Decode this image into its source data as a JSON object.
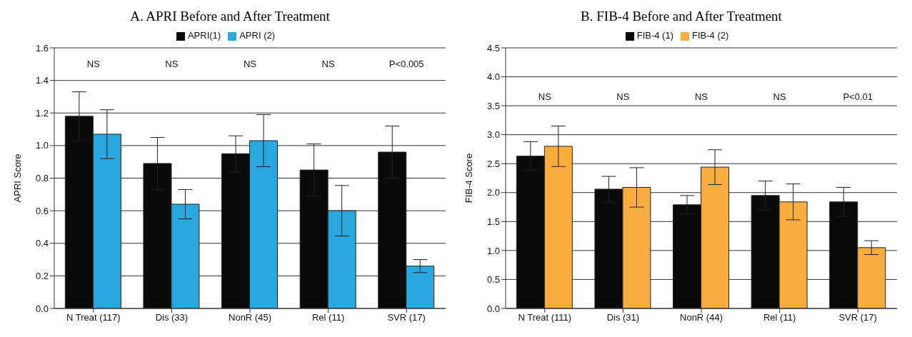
{
  "chart_data": [
    {
      "type": "bar",
      "title": "A.  APRI Before and After Treatment",
      "ylabel": "APRI Score",
      "categories": [
        "N  Treat (117)",
        "Dis (33)",
        "NonR (45)",
        "Rel (11)",
        "SVR (17)"
      ],
      "series": [
        {
          "name": "APRI(1)",
          "color": "#0a0a0a",
          "values": [
            1.18,
            0.89,
            0.95,
            0.85,
            0.96
          ],
          "errors": [
            0.15,
            0.16,
            0.11,
            0.16,
            0.16
          ]
        },
        {
          "name": "APRI (2)",
          "color": "#29a8e0",
          "values": [
            1.07,
            0.64,
            1.03,
            0.6,
            0.26
          ],
          "errors": [
            0.15,
            0.09,
            0.16,
            0.155,
            0.04
          ]
        }
      ],
      "ylim": [
        0,
        1.6
      ],
      "yticks": [
        {
          "value": 0,
          "label": "0.0"
        },
        {
          "value": 0.2,
          "label": "0.2"
        },
        {
          "value": 0.4,
          "label": "0.4"
        },
        {
          "value": 0.6,
          "label": "0.6"
        },
        {
          "value": 0.8,
          "label": "0.8"
        },
        {
          "value": 1,
          "label": "1.0"
        },
        {
          "value": 1.2,
          "label": "1.2"
        },
        {
          "value": 1.4,
          "label": "1.4"
        },
        {
          "value": 1.6,
          "label": "1.6"
        }
      ],
      "grid": "y",
      "legend": "top",
      "annotations": [
        "NS",
        "NS",
        "NS",
        "NS",
        "P<0.005"
      ]
    },
    {
      "type": "bar",
      "title": "B.  FIB-4 Before and After Treatment",
      "ylabel": "FIB-4 Score",
      "categories": [
        "N  Treat (111)",
        "Dis (31)",
        "NonR (44)",
        "Rel (11)",
        "SVR (17)"
      ],
      "series": [
        {
          "name": "FIB-4 (1)",
          "color": "#0a0a0a",
          "values": [
            2.63,
            2.06,
            1.79,
            1.95,
            1.84
          ],
          "errors": [
            0.25,
            0.22,
            0.16,
            0.25,
            0.25
          ]
        },
        {
          "name": "FIB-4 (2)",
          "color": "#f9ad3f",
          "values": [
            2.8,
            2.09,
            2.44,
            1.84,
            1.05
          ],
          "errors": [
            0.35,
            0.34,
            0.3,
            0.31,
            0.12
          ]
        }
      ],
      "ylim": [
        0,
        4.5
      ],
      "yticks": [
        {
          "value": 0,
          "label": "0.0"
        },
        {
          "value": 0.5,
          "label": "0.5"
        },
        {
          "value": 1,
          "label": "1.0"
        },
        {
          "value": 1.5,
          "label": "1.5"
        },
        {
          "value": 2,
          "label": "2.0"
        },
        {
          "value": 2.5,
          "label": "2.5"
        },
        {
          "value": 3,
          "label": "3.0"
        },
        {
          "value": 3.5,
          "label": "3.5"
        },
        {
          "value": 4,
          "label": "4.0"
        },
        {
          "value": 4.5,
          "label": "4.5"
        }
      ],
      "grid": "y",
      "legend": "top",
      "annotations": [
        "NS",
        "NS",
        "NS",
        "NS",
        "P<0.01"
      ]
    }
  ]
}
